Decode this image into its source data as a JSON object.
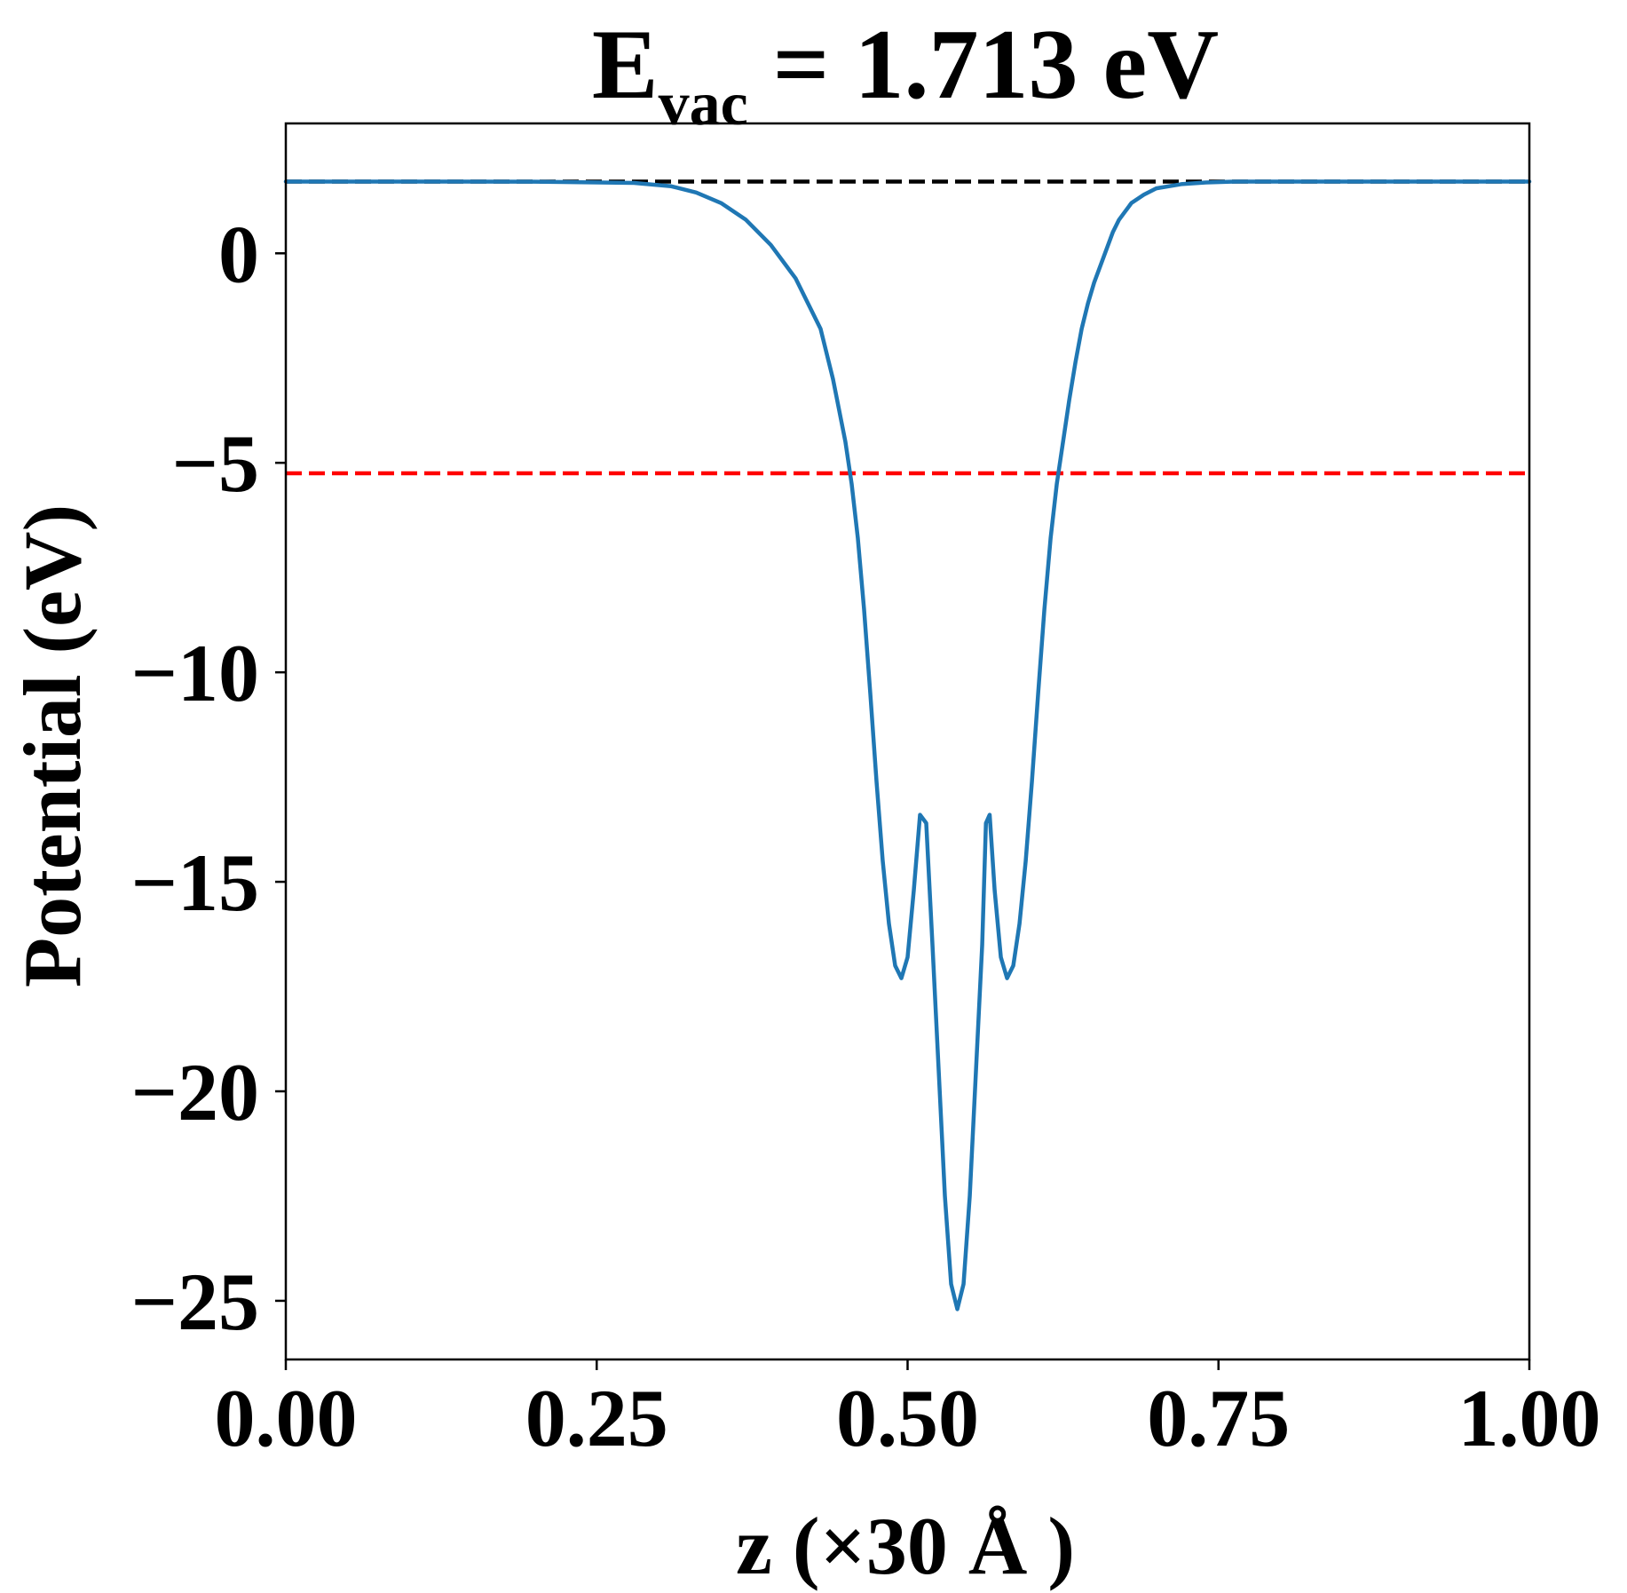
{
  "chart_data": {
    "type": "line",
    "title": {
      "main": "E",
      "subscript": "vac",
      "rest": " = 1.713 eV"
    },
    "xlabel": "z (×30 Å )",
    "ylabel": "Potential (eV)",
    "xlim": [
      0.0,
      1.0
    ],
    "ylim": [
      -26.4,
      3.1
    ],
    "xticks": [
      {
        "value": 0.0,
        "label": "0.00"
      },
      {
        "value": 0.25,
        "label": "0.25"
      },
      {
        "value": 0.5,
        "label": "0.50"
      },
      {
        "value": 0.75,
        "label": "0.75"
      },
      {
        "value": 1.0,
        "label": "1.00"
      }
    ],
    "yticks": [
      {
        "value": 0,
        "label": "0"
      },
      {
        "value": -5,
        "label": "−5"
      },
      {
        "value": -10,
        "label": "−10"
      },
      {
        "value": -15,
        "label": "−15"
      },
      {
        "value": -20,
        "label": "−20"
      },
      {
        "value": -25,
        "label": "−25"
      }
    ],
    "grid": false,
    "reference_lines": [
      {
        "y": 1.713,
        "color": "#000000",
        "style": "dashed"
      },
      {
        "y": -5.25,
        "color": "#ff0000",
        "style": "dashed"
      }
    ],
    "series": [
      {
        "color": "#1f77b4",
        "x": [
          0.0,
          0.1,
          0.2,
          0.28,
          0.31,
          0.33,
          0.35,
          0.37,
          0.39,
          0.41,
          0.43,
          0.44,
          0.45,
          0.455,
          0.46,
          0.465,
          0.47,
          0.475,
          0.48,
          0.485,
          0.49,
          0.495,
          0.5,
          0.505,
          0.51,
          0.515,
          0.52,
          0.525,
          0.53,
          0.535,
          0.54,
          0.545,
          0.55,
          0.555,
          0.56,
          0.563,
          0.566,
          0.57,
          0.575,
          0.58,
          0.585,
          0.59,
          0.595,
          0.6,
          0.605,
          0.61,
          0.615,
          0.62,
          0.625,
          0.63,
          0.635,
          0.64,
          0.645,
          0.65,
          0.655,
          0.66,
          0.665,
          0.67,
          0.675,
          0.68,
          0.69,
          0.7,
          0.72,
          0.74,
          0.76,
          0.78,
          0.8,
          0.82,
          0.9,
          1.0
        ],
        "y": [
          1.713,
          1.713,
          1.71,
          1.68,
          1.6,
          1.45,
          1.2,
          0.8,
          0.2,
          -0.6,
          -1.8,
          -3.0,
          -4.5,
          -5.5,
          -6.8,
          -8.5,
          -10.5,
          -12.6,
          -14.5,
          -16.0,
          -17.0,
          -17.3,
          -16.8,
          -15.2,
          -13.4,
          -13.6,
          -16.5,
          -19.5,
          -22.5,
          -24.6,
          -25.2,
          -24.6,
          -22.5,
          -19.5,
          -16.5,
          -13.6,
          -13.4,
          -15.2,
          -16.8,
          -17.3,
          -17.0,
          -16.0,
          -14.5,
          -12.6,
          -10.5,
          -8.5,
          -6.8,
          -5.5,
          -4.5,
          -3.5,
          -2.6,
          -1.8,
          -1.2,
          -0.7,
          -0.3,
          0.1,
          0.5,
          0.8,
          1.0,
          1.2,
          1.4,
          1.55,
          1.65,
          1.69,
          1.71,
          1.713,
          1.713,
          1.713,
          1.713,
          1.713
        ]
      }
    ]
  }
}
